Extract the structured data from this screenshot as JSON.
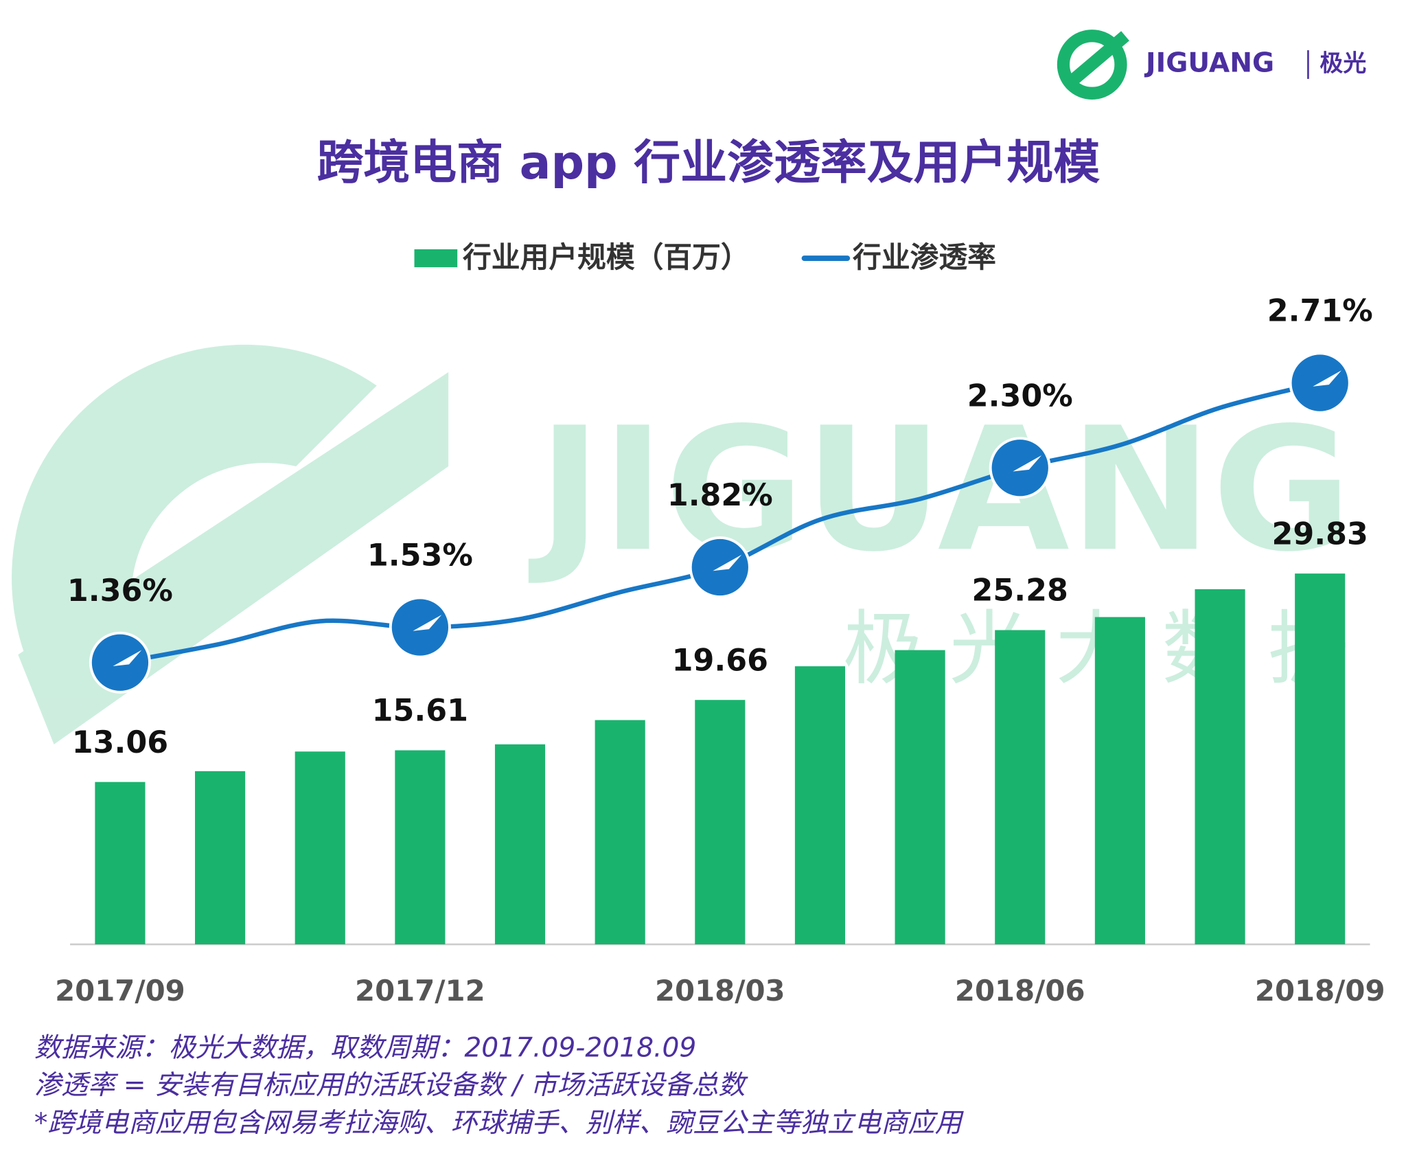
{
  "logo": "JIGUANG",
  "logo_cn": "极光",
  "watermark": "JIGUANG",
  "watermark_cn": "极 光 大 数 据",
  "chart_data": {
    "type": "bar",
    "title": "跨境电商 app 行业渗透率及用户规模",
    "categories": [
      "2017/09",
      null,
      null,
      "2017/12",
      null,
      null,
      "2018/03",
      null,
      null,
      "2018/06",
      null,
      null,
      "2018/09"
    ],
    "series": [
      {
        "name": "行业用户规模（百万）",
        "color": "#1ab36e",
        "type": "bar",
        "values": [
          13.06,
          13.93,
          15.51,
          15.61,
          16.09,
          18.04,
          19.66,
          22.37,
          23.67,
          25.28,
          26.33,
          28.57,
          29.83
        ],
        "value_labels": [
          "13.06",
          null,
          null,
          "15.61",
          null,
          null,
          "19.66",
          null,
          null,
          "25.28",
          null,
          null,
          "29.83"
        ]
      },
      {
        "name": "行业渗透率",
        "color": "#1777c6",
        "type": "line",
        "axis": "y2",
        "values": [
          1.36,
          1.45,
          1.56,
          1.53,
          1.57,
          1.7,
          1.82,
          2.05,
          2.15,
          2.3,
          2.41,
          2.59,
          2.71
        ],
        "value_labels": [
          "1.36%",
          null,
          null,
          "1.53%",
          null,
          null,
          "1.82%",
          null,
          null,
          "2.30%",
          null,
          null,
          "2.71%"
        ]
      }
    ],
    "ylim": [
      0,
      50
    ],
    "y2lim": [
      0,
      3
    ],
    "notes": [
      "数据来源：极光大数据，取数周期：2017.09-2018.09",
      "渗透率 = 安装有目标应用的活跃设备数 / 市场活跃设备总数",
      " *跨境电商应用包含网易考拉海购、环球捕手、别样、豌豆公主等独立电商应用"
    ]
  }
}
